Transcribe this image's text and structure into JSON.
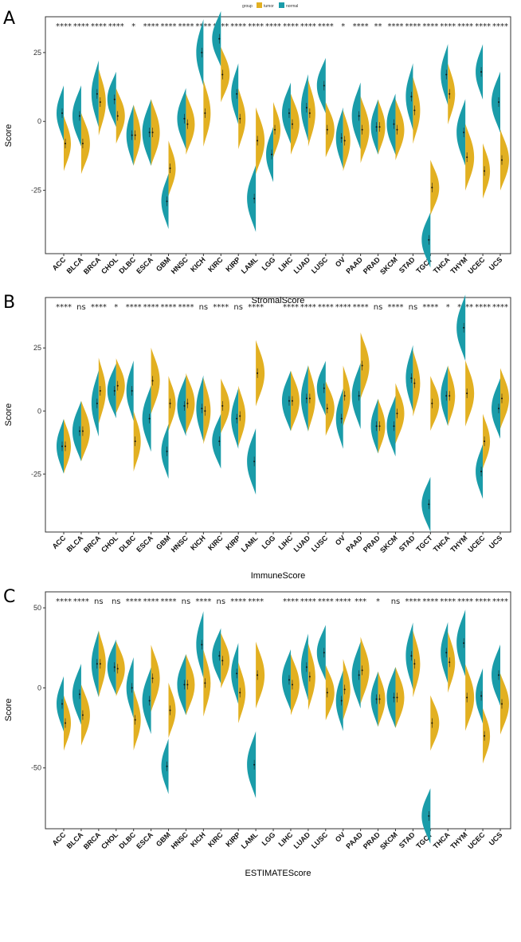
{
  "colors": {
    "tumor": "#e2b021",
    "normal": "#1a9ca9",
    "frame": "#333333",
    "tick": "#333333"
  },
  "legend": {
    "title": "group",
    "items": [
      {
        "key": "tumor",
        "label": "tumor"
      },
      {
        "key": "normal",
        "label": "normal"
      }
    ]
  },
  "chart_data": [
    {
      "type": "violin",
      "panel": "A",
      "xlabel": "StromalScore",
      "ylabel": "Score",
      "ylim": [
        -48,
        38
      ],
      "yticks": [
        -25,
        0,
        25
      ],
      "categories": [
        "ACC",
        "BLCA",
        "BRCA",
        "CHOL",
        "DLBC",
        "ESCA",
        "GBM",
        "HNSC",
        "KICH",
        "KIRC",
        "KIRP",
        "LAML",
        "LGG",
        "LIHC",
        "LUAD",
        "LUSC",
        "OV",
        "PAAD",
        "PRAD",
        "SKCM",
        "STAD",
        "TGCT",
        "THCA",
        "THYM",
        "UCEC",
        "UCS"
      ],
      "significance": [
        "****",
        "****",
        "****",
        "****",
        "*",
        "****",
        "****",
        "****",
        "****",
        "****",
        "****",
        "****",
        "****",
        "****",
        "****",
        "****",
        "*",
        "****",
        "**",
        "****",
        "****",
        "****",
        "****",
        "****",
        "****",
        "****"
      ],
      "series": [
        {
          "name": "normal",
          "medians": [
            3,
            2,
            10,
            8,
            -5,
            -4,
            -29,
            1,
            25,
            30,
            10,
            -28,
            -12,
            3,
            5,
            13,
            -6,
            2,
            -2,
            -1,
            9,
            -43,
            17,
            -4,
            18,
            7
          ]
        },
        {
          "name": "tumor",
          "medians": [
            -8,
            -8,
            7,
            2,
            -5,
            -4,
            -17,
            -1,
            3,
            17,
            1,
            -7,
            -3,
            -1,
            3,
            -3,
            -7,
            -3,
            -2,
            -3,
            4,
            -24,
            10,
            -13,
            -18,
            -14
          ]
        }
      ]
    },
    {
      "type": "violin",
      "panel": "B",
      "xlabel": "ImmuneScore",
      "ylabel": "Score",
      "ylim": [
        -48,
        45
      ],
      "yticks": [
        -25,
        0,
        25
      ],
      "categories": [
        "ACC",
        "BLCA",
        "BRCA",
        "CHOL",
        "DLBC",
        "ESCA",
        "GBM",
        "HNSC",
        "KICH",
        "KIRC",
        "KIRP",
        "LAML",
        "LGG",
        "LIHC",
        "LUAD",
        "LUSC",
        "OV",
        "PAAD",
        "PRAD",
        "SKCM",
        "STAD",
        "TGCT",
        "THCA",
        "THYM",
        "UCEC",
        "UCS"
      ],
      "significance": [
        "****",
        "ns",
        "****",
        "*",
        "****",
        "****",
        "****",
        "****",
        "ns",
        "****",
        "ns",
        "****",
        "",
        "****",
        "****",
        "****",
        "****",
        "****",
        "ns",
        "****",
        "ns",
        "****",
        "*",
        "****",
        "****",
        "****"
      ],
      "series": [
        {
          "name": "normal",
          "medians": [
            -14,
            -8,
            3,
            8,
            8,
            -3,
            -16,
            2,
            1,
            -12,
            -3,
            -20,
            null,
            4,
            5,
            9,
            -3,
            6,
            -6,
            -6,
            13,
            -37,
            6,
            33,
            -24,
            1
          ]
        },
        {
          "name": "tumor",
          "medians": [
            -14,
            -8,
            8,
            10,
            -12,
            12,
            3,
            3,
            0,
            2,
            -2,
            15,
            null,
            4,
            5,
            1,
            6,
            18,
            -6,
            -1,
            11,
            3,
            6,
            7,
            -12,
            5
          ]
        }
      ]
    },
    {
      "type": "violin",
      "panel": "C",
      "xlabel": "ESTIMATEScore",
      "ylabel": "Score",
      "ylim": [
        -88,
        60
      ],
      "yticks": [
        -50,
        0,
        50
      ],
      "categories": [
        "ACC",
        "BLCA",
        "BRCA",
        "CHOL",
        "DLBC",
        "ESCA",
        "GBM",
        "HNSC",
        "KICH",
        "KIRC",
        "KIRP",
        "LAML",
        "LGG",
        "LIHC",
        "LUAD",
        "LUSC",
        "OV",
        "PAAD",
        "PRAD",
        "SKCM",
        "STAD",
        "TGCT",
        "THCA",
        "THYM",
        "UCEC",
        "UCS"
      ],
      "significance": [
        "****",
        "****",
        "ns",
        "ns",
        "****",
        "****",
        "****",
        "ns",
        "****",
        "ns",
        "****",
        "****",
        "",
        "****",
        "****",
        "****",
        "****",
        "***",
        "*",
        "ns",
        "****",
        "****",
        "****",
        "****",
        "****",
        "****"
      ],
      "series": [
        {
          "name": "normal",
          "medians": [
            -10,
            -4,
            15,
            13,
            0,
            -8,
            -49,
            2,
            27,
            20,
            9,
            -48,
            null,
            5,
            13,
            22,
            -8,
            8,
            -7,
            -6,
            20,
            -80,
            22,
            28,
            -5,
            8
          ]
        },
        {
          "name": "tumor",
          "medians": [
            -22,
            -17,
            15,
            12,
            -20,
            6,
            -14,
            2,
            3,
            17,
            -3,
            8,
            null,
            2,
            7,
            -3,
            -1,
            11,
            -7,
            -6,
            15,
            -22,
            16,
            -6,
            -30,
            -10
          ]
        }
      ]
    }
  ]
}
